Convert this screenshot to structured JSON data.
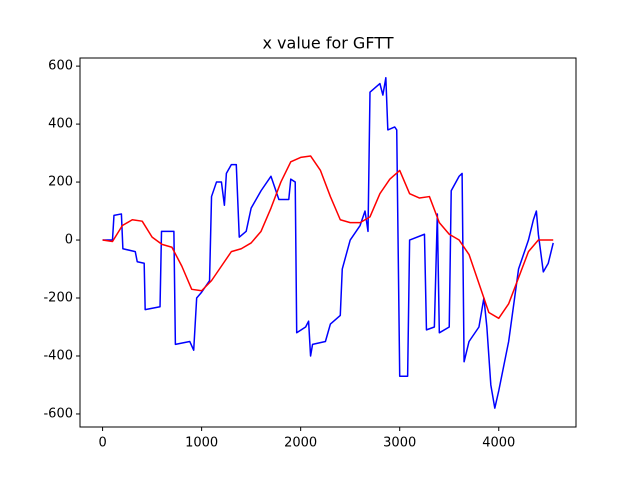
{
  "chart_data": {
    "type": "line",
    "title": "x value for GFTT",
    "xlim": [
      -228,
      4780
    ],
    "ylim": [
      -645,
      628
    ],
    "xticks": [
      0,
      1000,
      2000,
      3000,
      4000
    ],
    "yticks": [
      -600,
      -400,
      -200,
      0,
      200,
      400,
      600
    ],
    "series": [
      {
        "color": "#0000ff",
        "x": [
          0,
          100,
          115,
          190,
          205,
          330,
          350,
          420,
          430,
          580,
          595,
          720,
          735,
          880,
          920,
          950,
          1000,
          1080,
          1100,
          1150,
          1200,
          1230,
          1250,
          1300,
          1350,
          1380,
          1450,
          1500,
          1600,
          1700,
          1780,
          1880,
          1900,
          1945,
          1960,
          2050,
          2080,
          2100,
          2120,
          2250,
          2300,
          2400,
          2420,
          2500,
          2600,
          2650,
          2680,
          2700,
          2800,
          2830,
          2860,
          2880,
          2950,
          2970,
          3000,
          3080,
          3100,
          3250,
          3270,
          3350,
          3380,
          3400,
          3500,
          3520,
          3600,
          3630,
          3650,
          3700,
          3800,
          3850,
          3880,
          3920,
          3960,
          4000,
          4100,
          4200,
          4300,
          4350,
          4380,
          4400,
          4450,
          4500,
          4550
        ],
        "values": [
          0,
          0,
          85,
          90,
          -30,
          -40,
          -75,
          -80,
          -240,
          -230,
          30,
          30,
          -360,
          -350,
          -380,
          -200,
          -180,
          -140,
          150,
          200,
          200,
          120,
          230,
          260,
          260,
          10,
          30,
          110,
          170,
          220,
          140,
          140,
          210,
          200,
          -320,
          -300,
          -280,
          -400,
          -360,
          -350,
          -290,
          -260,
          -100,
          0,
          50,
          100,
          30,
          510,
          540,
          500,
          560,
          380,
          390,
          380,
          -470,
          -470,
          0,
          20,
          -310,
          -300,
          90,
          -320,
          -300,
          170,
          220,
          230,
          -420,
          -350,
          -300,
          -200,
          -300,
          -500,
          -580,
          -520,
          -350,
          -100,
          0,
          70,
          100,
          20,
          -110,
          -80,
          -10
        ]
      },
      {
        "color": "#ff0000",
        "x": [
          0,
          100,
          200,
          300,
          400,
          500,
          600,
          700,
          800,
          900,
          1000,
          1100,
          1200,
          1300,
          1400,
          1500,
          1600,
          1700,
          1800,
          1900,
          2000,
          2100,
          2200,
          2300,
          2400,
          2500,
          2600,
          2700,
          2800,
          2900,
          3000,
          3100,
          3200,
          3300,
          3400,
          3500,
          3600,
          3700,
          3800,
          3900,
          4000,
          4100,
          4200,
          4300,
          4400,
          4550
        ],
        "values": [
          0,
          -5,
          50,
          70,
          65,
          10,
          -15,
          -25,
          -90,
          -170,
          -175,
          -140,
          -90,
          -40,
          -30,
          -10,
          30,
          110,
          200,
          270,
          285,
          290,
          240,
          150,
          70,
          60,
          60,
          80,
          160,
          210,
          240,
          160,
          145,
          150,
          60,
          20,
          0,
          -50,
          -150,
          -250,
          -270,
          -220,
          -130,
          -40,
          0,
          0
        ]
      }
    ]
  }
}
